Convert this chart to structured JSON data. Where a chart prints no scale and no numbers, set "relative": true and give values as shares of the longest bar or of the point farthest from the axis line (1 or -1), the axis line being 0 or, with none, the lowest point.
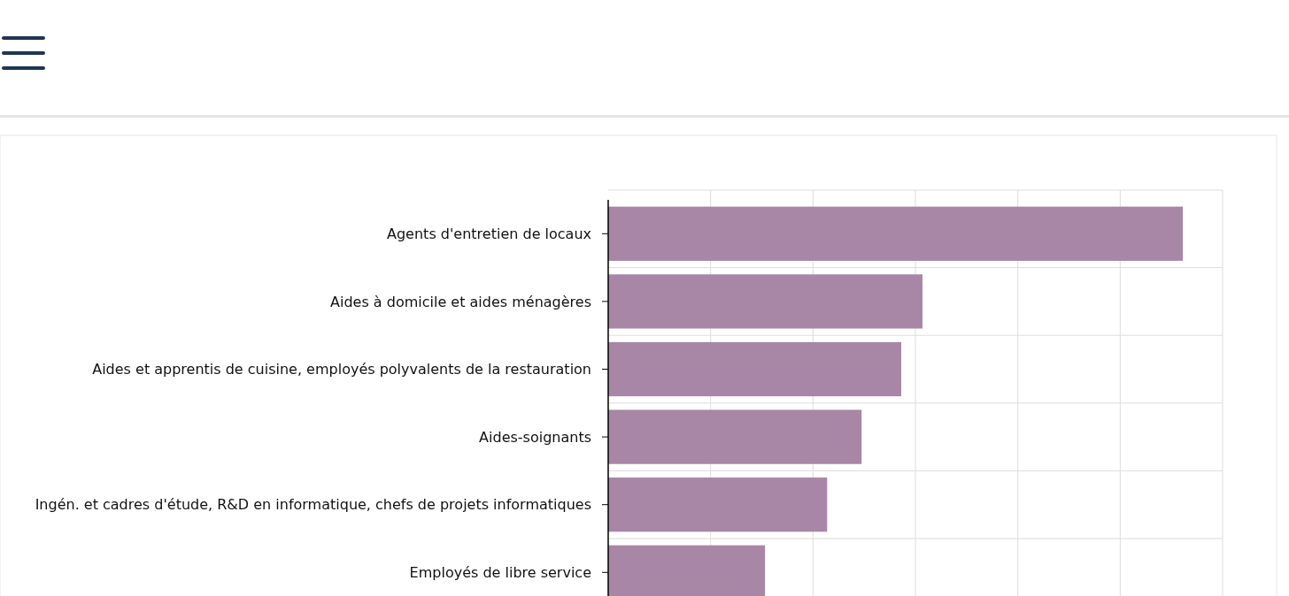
{
  "chart_data": {
    "type": "bar",
    "orientation": "horizontal",
    "relative": true,
    "grid": true,
    "color": "#a886a6",
    "categories": [
      "Agents d'entretien de locaux",
      "Aides à domicile et aides ménagères",
      "Aides et apprentis de cuisine, employés polyvalents de la restauration",
      "Aides-soignants",
      "Ingén. et cadres d'étude, R&D en informatique, chefs de projets informatiques",
      "Employés de libre service"
    ],
    "values": [
      1,
      0.547,
      0.51,
      0.441,
      0.381,
      0.273
    ]
  }
}
